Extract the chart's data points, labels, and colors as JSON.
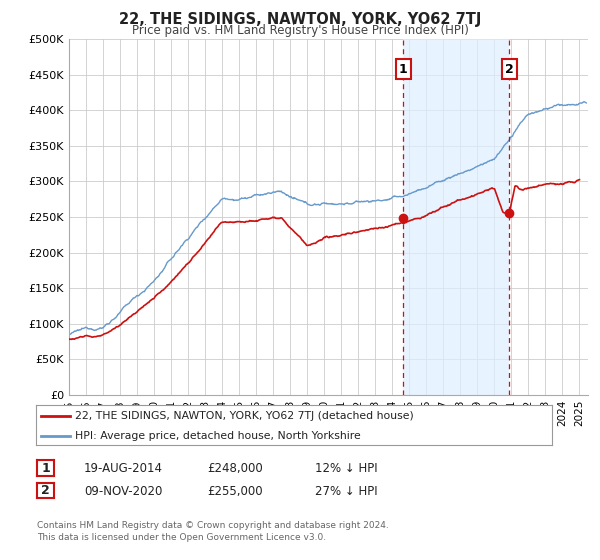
{
  "title": "22, THE SIDINGS, NAWTON, YORK, YO62 7TJ",
  "subtitle": "Price paid vs. HM Land Registry's House Price Index (HPI)",
  "ylim": [
    0,
    500000
  ],
  "xlim_start": 1995.0,
  "xlim_end": 2025.5,
  "yticks": [
    0,
    50000,
    100000,
    150000,
    200000,
    250000,
    300000,
    350000,
    400000,
    450000,
    500000
  ],
  "ytick_labels": [
    "£0",
    "£50K",
    "£100K",
    "£150K",
    "£200K",
    "£250K",
    "£300K",
    "£350K",
    "£400K",
    "£450K",
    "£500K"
  ],
  "xticks": [
    1995,
    1996,
    1997,
    1998,
    1999,
    2000,
    2001,
    2002,
    2003,
    2004,
    2005,
    2006,
    2007,
    2008,
    2009,
    2010,
    2011,
    2012,
    2013,
    2014,
    2015,
    2016,
    2017,
    2018,
    2019,
    2020,
    2021,
    2022,
    2023,
    2024,
    2025
  ],
  "red_color": "#cc1111",
  "blue_color": "#6699cc",
  "shade_color": "#ddeeff",
  "grid_color": "#cccccc",
  "bg_color": "#ffffff",
  "sale1_x": 2014.636,
  "sale1_y": 248000,
  "sale1_label": "1",
  "sale1_date": "19-AUG-2014",
  "sale1_price": "£248,000",
  "sale1_hpi": "12% ↓ HPI",
  "sale2_x": 2020.86,
  "sale2_y": 255000,
  "sale2_label": "2",
  "sale2_date": "09-NOV-2020",
  "sale2_price": "£255,000",
  "sale2_hpi": "27% ↓ HPI",
  "legend_line1": "22, THE SIDINGS, NAWTON, YORK, YO62 7TJ (detached house)",
  "legend_line2": "HPI: Average price, detached house, North Yorkshire",
  "footer1": "Contains HM Land Registry data © Crown copyright and database right 2024.",
  "footer2": "This data is licensed under the Open Government Licence v3.0."
}
